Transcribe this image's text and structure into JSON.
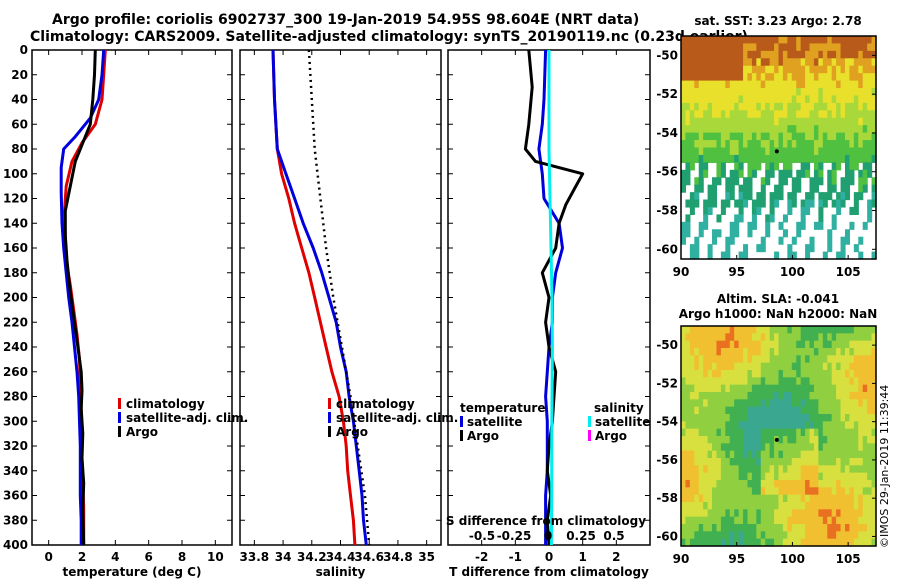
{
  "header": {
    "title_line1": "Argo profile: coriolis 6902737_300 19-Jan-2019 54.95S 98.604E (NRT data)",
    "title_line2": "Climatology: CARS2009. Satellite-adjusted climatology: synTS_20190119.nc (0.23d earlier)"
  },
  "side_stamp": "©IMOS 29-Jan-2019 11:39:44",
  "colors": {
    "climatology": "#e00000",
    "satellite": "#0000dd",
    "argo": "#000000",
    "salinity_sat": "#00eeee",
    "salinity_argo": "#ff00ff"
  },
  "chart_data": [
    {
      "id": "temperature",
      "type": "line",
      "xlabel": "temperature (deg C)",
      "ylabel": "",
      "xlim": [
        -1,
        11
      ],
      "ylim": [
        400,
        0
      ],
      "xticks": [
        0,
        2,
        4,
        6,
        8,
        10
      ],
      "yticks": [
        0,
        20,
        40,
        60,
        80,
        100,
        120,
        140,
        160,
        180,
        200,
        220,
        240,
        260,
        280,
        300,
        320,
        340,
        360,
        380,
        400
      ],
      "legend": [
        "climatology",
        "satellite-adj. clim.",
        "Argo"
      ],
      "series": [
        {
          "name": "climatology",
          "color": "#e00000",
          "dashed": false,
          "points": [
            [
              3.4,
              0
            ],
            [
              3.3,
              20
            ],
            [
              3.2,
              40
            ],
            [
              2.8,
              60
            ],
            [
              2.0,
              75
            ],
            [
              1.4,
              90
            ],
            [
              1.05,
              110
            ],
            [
              0.95,
              130
            ],
            [
              1.0,
              150
            ],
            [
              1.05,
              170
            ],
            [
              1.3,
              190
            ],
            [
              1.5,
              210
            ],
            [
              1.7,
              230
            ],
            [
              1.85,
              250
            ],
            [
              1.9,
              270
            ],
            [
              1.95,
              290
            ],
            [
              2.0,
              310
            ],
            [
              2.0,
              330
            ],
            [
              2.05,
              350
            ],
            [
              2.1,
              370
            ],
            [
              2.1,
              400
            ]
          ]
        },
        {
          "name": "satellite-adj. clim.",
          "color": "#0000dd",
          "dashed": false,
          "points": [
            [
              3.3,
              0
            ],
            [
              3.2,
              20
            ],
            [
              3.0,
              40
            ],
            [
              2.5,
              55
            ],
            [
              1.6,
              70
            ],
            [
              0.9,
              80
            ],
            [
              0.75,
              95
            ],
            [
              0.75,
              115
            ],
            [
              0.8,
              140
            ],
            [
              0.9,
              160
            ],
            [
              1.05,
              180
            ],
            [
              1.2,
              200
            ],
            [
              1.4,
              220
            ],
            [
              1.55,
              240
            ],
            [
              1.7,
              260
            ],
            [
              1.8,
              280
            ],
            [
              1.85,
              300
            ],
            [
              1.9,
              320
            ],
            [
              1.9,
              340
            ],
            [
              1.9,
              360
            ],
            [
              1.95,
              380
            ],
            [
              1.95,
              400
            ]
          ]
        },
        {
          "name": "Argo",
          "color": "#000000",
          "dashed": false,
          "points": [
            [
              2.8,
              0
            ],
            [
              2.75,
              20
            ],
            [
              2.65,
              40
            ],
            [
              2.5,
              60
            ],
            [
              2.05,
              75
            ],
            [
              1.6,
              90
            ],
            [
              1.3,
              110
            ],
            [
              1.0,
              130
            ],
            [
              1.0,
              150
            ],
            [
              1.1,
              170
            ],
            [
              1.25,
              190
            ],
            [
              1.45,
              210
            ],
            [
              1.65,
              230
            ],
            [
              1.8,
              245
            ],
            [
              1.95,
              260
            ],
            [
              2.0,
              275
            ],
            [
              1.95,
              290
            ],
            [
              2.05,
              310
            ],
            [
              2.0,
              330
            ],
            [
              2.1,
              350
            ],
            [
              2.05,
              370
            ],
            [
              2.1,
              400
            ]
          ]
        }
      ]
    },
    {
      "id": "salinity",
      "type": "line",
      "xlabel": "salinity",
      "xlim": [
        33.7,
        35.1
      ],
      "ylim": [
        400,
        0
      ],
      "xticks": [
        33.8,
        34,
        34.2,
        34.4,
        34.6,
        34.8,
        35
      ],
      "ytick_labels_shown": false,
      "legend": [
        "climatology",
        "satellite-adj. clim.",
        "Argo"
      ],
      "series": [
        {
          "name": "climatology",
          "color": "#e00000",
          "dashed": false,
          "points": [
            [
              33.93,
              0
            ],
            [
              33.94,
              40
            ],
            [
              33.96,
              80
            ],
            [
              33.99,
              100
            ],
            [
              34.04,
              120
            ],
            [
              34.08,
              140
            ],
            [
              34.13,
              160
            ],
            [
              34.18,
              180
            ],
            [
              34.22,
              200
            ],
            [
              34.26,
              220
            ],
            [
              34.3,
              240
            ],
            [
              34.34,
              260
            ],
            [
              34.39,
              280
            ],
            [
              34.42,
              300
            ],
            [
              34.44,
              320
            ],
            [
              34.45,
              340
            ],
            [
              34.47,
              360
            ],
            [
              34.49,
              380
            ],
            [
              34.5,
              400
            ]
          ]
        },
        {
          "name": "satellite-adj. clim.",
          "color": "#0000dd",
          "dashed": false,
          "points": [
            [
              33.93,
              0
            ],
            [
              33.94,
              40
            ],
            [
              33.96,
              80
            ],
            [
              34.02,
              100
            ],
            [
              34.08,
              120
            ],
            [
              34.14,
              140
            ],
            [
              34.21,
              160
            ],
            [
              34.27,
              180
            ],
            [
              34.32,
              200
            ],
            [
              34.37,
              220
            ],
            [
              34.4,
              240
            ],
            [
              34.44,
              260
            ],
            [
              34.46,
              280
            ],
            [
              34.49,
              300
            ],
            [
              34.51,
              320
            ],
            [
              34.53,
              340
            ],
            [
              34.55,
              360
            ],
            [
              34.56,
              380
            ],
            [
              34.58,
              400
            ]
          ]
        },
        {
          "name": "Argo",
          "color": "#000000",
          "dashed": true,
          "points": [
            [
              34.18,
              0
            ],
            [
              34.2,
              40
            ],
            [
              34.22,
              80
            ],
            [
              34.26,
              120
            ],
            [
              34.3,
              160
            ],
            [
              34.35,
              200
            ],
            [
              34.41,
              240
            ],
            [
              34.47,
              280
            ],
            [
              34.52,
              320
            ],
            [
              34.57,
              360
            ],
            [
              34.6,
              400
            ]
          ]
        }
      ]
    },
    {
      "id": "differences",
      "type": "line",
      "xlabel": "T difference from climatology",
      "second_axis_label": "S difference from climatology",
      "xlim": [
        -3,
        3
      ],
      "ylim": [
        400,
        0
      ],
      "xticks": [
        -2,
        -1,
        0,
        1,
        2
      ],
      "second_axis_ticks": [
        "-0.5",
        "-0.25",
        "0",
        "0.25",
        "0.5"
      ],
      "legend_temperature": {
        "title": "temperature",
        "items": [
          "satellite",
          "Argo"
        ]
      },
      "legend_salinity": {
        "title": "salinity",
        "items": [
          "satellite",
          "Argo"
        ]
      },
      "series": [
        {
          "name": "temperature satellite",
          "color": "#0000dd",
          "points": [
            [
              -0.1,
              0
            ],
            [
              -0.15,
              40
            ],
            [
              -0.2,
              60
            ],
            [
              -0.3,
              80
            ],
            [
              -0.2,
              100
            ],
            [
              -0.15,
              120
            ],
            [
              0.3,
              140
            ],
            [
              0.4,
              160
            ],
            [
              0.2,
              180
            ],
            [
              0.1,
              200
            ],
            [
              0.1,
              220
            ],
            [
              0.0,
              240
            ],
            [
              -0.05,
              260
            ],
            [
              -0.1,
              280
            ],
            [
              -0.05,
              300
            ],
            [
              -0.05,
              320
            ],
            [
              -0.05,
              340
            ],
            [
              -0.1,
              360
            ],
            [
              -0.1,
              380
            ],
            [
              -0.1,
              400
            ]
          ]
        },
        {
          "name": "temperature Argo",
          "color": "#000000",
          "points": [
            [
              -0.6,
              0
            ],
            [
              -0.5,
              30
            ],
            [
              -0.6,
              60
            ],
            [
              -0.7,
              80
            ],
            [
              -0.4,
              90
            ],
            [
              1.0,
              100
            ],
            [
              0.8,
              110
            ],
            [
              0.5,
              125
            ],
            [
              0.3,
              140
            ],
            [
              0.2,
              160
            ],
            [
              -0.2,
              180
            ],
            [
              0.0,
              200
            ],
            [
              -0.1,
              220
            ],
            [
              0.0,
              240
            ],
            [
              0.2,
              260
            ],
            [
              0.15,
              280
            ],
            [
              0.1,
              300
            ],
            [
              0.0,
              320
            ],
            [
              -0.05,
              340
            ],
            [
              0.05,
              360
            ],
            [
              -0.05,
              380
            ],
            [
              0.0,
              400
            ]
          ]
        },
        {
          "name": "salinity satellite",
          "color": "#00eeee",
          "points": [
            [
              0.0,
              0
            ],
            [
              0.0,
              40
            ],
            [
              0.0,
              80
            ],
            [
              0.03,
              120
            ],
            [
              0.06,
              160
            ],
            [
              0.09,
              200
            ],
            [
              0.1,
              240
            ],
            [
              0.09,
              280
            ],
            [
              0.08,
              320
            ],
            [
              0.08,
              360
            ],
            [
              0.07,
              400
            ]
          ]
        },
        {
          "name": "salinity Argo",
          "color": "#ff00ff",
          "points": []
        }
      ]
    },
    {
      "id": "sst_map",
      "type": "heatmap",
      "title": "sat. SST: 3.23 Argo: 2.78",
      "xticks": [
        90,
        95,
        100,
        105
      ],
      "yticks": [
        -50,
        -52,
        -54,
        -56,
        -58,
        -60
      ],
      "xlim": [
        90,
        107.5
      ],
      "ylim": [
        -49,
        -60.5
      ]
    },
    {
      "id": "sla_map",
      "type": "heatmap",
      "title_line1": "Altim. SLA: -0.041",
      "title_line2": "Argo h1000: NaN h2000: NaN",
      "xticks": [
        90,
        95,
        100,
        105
      ],
      "yticks": [
        -50,
        -52,
        -54,
        -56,
        -58,
        -60
      ],
      "xlim": [
        90,
        107.5
      ],
      "ylim": [
        -49,
        -60.5
      ]
    }
  ]
}
